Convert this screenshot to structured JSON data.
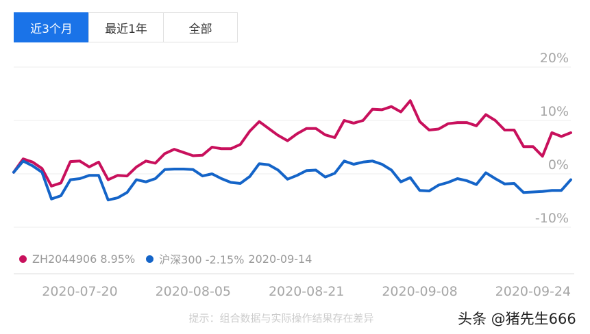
{
  "tabs": [
    {
      "label": "近3个月",
      "active": true
    },
    {
      "label": "最近1年",
      "active": false
    },
    {
      "label": "全部",
      "active": false
    }
  ],
  "legend": {
    "series1": "ZH2044906 8.95%",
    "series2": "沪深300 -2.15%",
    "date": "2020-09-14"
  },
  "hint": "提示：组合数据与实际操作结果存在差异",
  "watermark": "头条 @猪先生666",
  "colors": {
    "series1": "#c8105c",
    "series2": "#1464c8",
    "active_tab": "#1a73e8",
    "grid": "#eeeeee",
    "axis_text": "#a6a6a6"
  },
  "chart_data": {
    "type": "line",
    "title": "",
    "xlabel": "",
    "ylabel": "",
    "ylim": [
      -10,
      20
    ],
    "y_unit": "%",
    "ytick_values": [
      20,
      10,
      0,
      -10
    ],
    "ytick_labels": [
      "20%",
      "10%",
      "0%",
      "-10%"
    ],
    "xtick_labels": [
      "2020-07-20",
      "2020-08-05",
      "2020-08-21",
      "2020-09-08",
      "2020-09-24"
    ],
    "xtick_index": [
      7,
      19,
      31,
      43,
      55
    ],
    "grid": true,
    "series": [
      {
        "name": "ZH2044906",
        "color": "#c8105c",
        "values": [
          0.3,
          2.8,
          2.2,
          1.0,
          -2.3,
          -1.7,
          2.3,
          2.4,
          1.3,
          2.2,
          -1.1,
          -0.3,
          -0.4,
          1.3,
          2.4,
          2.0,
          3.8,
          4.6,
          4.0,
          3.4,
          3.5,
          5.0,
          4.7,
          4.7,
          5.5,
          8.0,
          9.8,
          8.5,
          7.2,
          6.2,
          7.5,
          8.5,
          8.5,
          7.3,
          6.8,
          10.0,
          9.5,
          10.0,
          12.1,
          12.0,
          12.6,
          11.6,
          13.7,
          9.8,
          8.2,
          8.4,
          9.4,
          9.6,
          9.6,
          9.0,
          11.1,
          10.0,
          8.2,
          8.2,
          5.1,
          5.1,
          3.3,
          7.7,
          7.0,
          7.7
        ]
      },
      {
        "name": "沪深300",
        "color": "#1464c8",
        "values": [
          0.3,
          2.4,
          1.5,
          0.3,
          -4.7,
          -4.1,
          -1.1,
          -0.9,
          -0.3,
          -0.3,
          -4.9,
          -4.5,
          -3.5,
          -1.1,
          -1.5,
          -0.9,
          0.8,
          0.9,
          0.9,
          0.8,
          -0.4,
          0.0,
          -0.9,
          -1.6,
          -1.8,
          -0.5,
          1.9,
          1.7,
          0.7,
          -1.0,
          -0.3,
          0.6,
          0.7,
          -0.6,
          0.1,
          2.4,
          1.8,
          2.2,
          2.4,
          1.8,
          0.7,
          -1.5,
          -0.7,
          -3.1,
          -3.2,
          -2.1,
          -1.6,
          -0.9,
          -1.3,
          -2.0,
          0.2,
          -0.9,
          -1.9,
          -1.8,
          -3.5,
          -3.4,
          -3.3,
          -3.1,
          -3.1,
          -1.1
        ]
      }
    ]
  }
}
